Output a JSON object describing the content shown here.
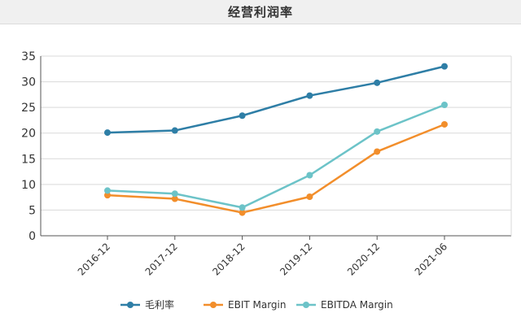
{
  "header": {
    "title": "经营利润率"
  },
  "chart_data": {
    "type": "line",
    "title": "经营利润率",
    "categories": [
      "2016-12",
      "2017-12",
      "2018-12",
      "2019-12",
      "2020-12",
      "2021-06"
    ],
    "ylim": [
      0,
      35
    ],
    "yticks": [
      0,
      5,
      10,
      15,
      20,
      25,
      30,
      35
    ],
    "grid": true,
    "legend_position": "bottom",
    "series": [
      {
        "name": "毛利率",
        "color": "#2e7ea6",
        "values": [
          20.1,
          20.5,
          23.4,
          27.3,
          29.8,
          33.0
        ]
      },
      {
        "name": "EBIT Margin",
        "color": "#f28e2b",
        "values": [
          7.9,
          7.2,
          4.5,
          7.6,
          16.4,
          21.7
        ]
      },
      {
        "name": "EBITDA Margin",
        "color": "#6cc3c8",
        "values": [
          8.8,
          8.2,
          5.5,
          11.8,
          20.3,
          25.5
        ]
      }
    ]
  }
}
